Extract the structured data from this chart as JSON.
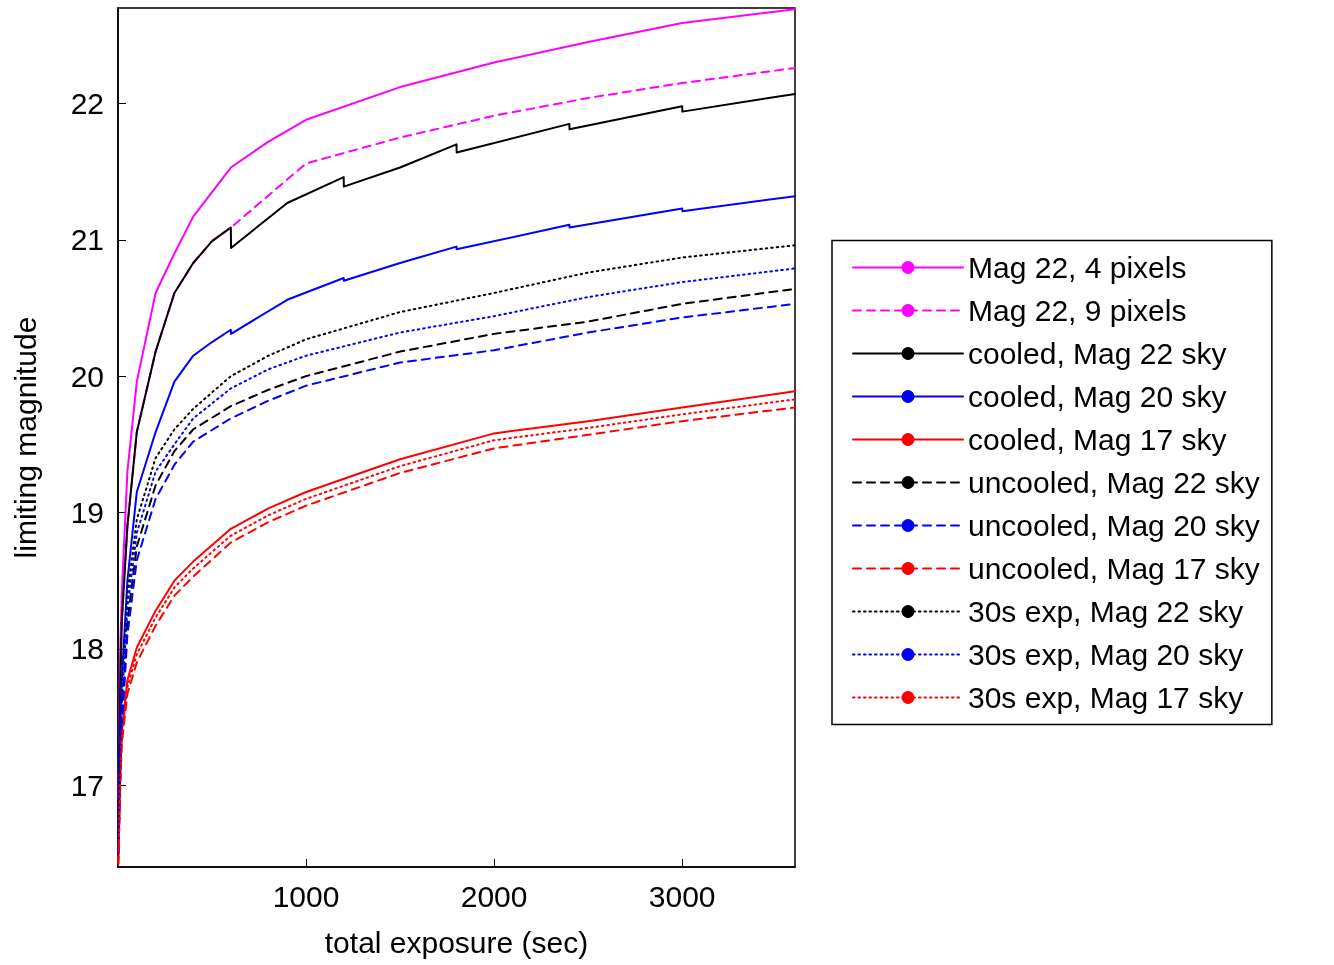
{
  "chart_data": {
    "type": "line",
    "xlabel": "total exposure (sec)",
    "ylabel": "limiting magnitude",
    "xlim": [
      0,
      3600
    ],
    "xticks": [
      1000,
      2000,
      3000
    ],
    "ylim": [
      16.4,
      22.7
    ],
    "yticks": [
      17,
      18,
      19,
      20,
      21,
      22
    ],
    "grid": false,
    "legend": "right",
    "marker": "none",
    "series": [
      {
        "name": "Mag 22, 4 pixels",
        "color": "#ff00ff",
        "line_style": "solid",
        "x": [
          2,
          10,
          20,
          50,
          100,
          200,
          300,
          400,
          600,
          800,
          1000,
          1500,
          2000,
          2500,
          3000,
          3600
        ],
        "values": [
          16.9,
          17.9,
          18.4,
          19.3,
          19.96,
          20.61,
          20.9,
          21.17,
          21.53,
          21.72,
          21.88,
          22.12,
          22.3,
          22.45,
          22.59,
          22.69
        ]
      },
      {
        "name": "Mag 22, 9 pixels",
        "color": "#ff00ff",
        "line_style": "dashed",
        "x": [
          2,
          10,
          20,
          50,
          100,
          200,
          300,
          400,
          500,
          600,
          1000,
          1500,
          2000,
          2500,
          3000,
          3600
        ],
        "values": [
          16.7,
          17.6,
          18.2,
          18.9,
          19.59,
          20.18,
          20.61,
          20.83,
          20.99,
          21.09,
          21.56,
          21.75,
          21.91,
          22.04,
          22.15,
          22.26
        ]
      },
      {
        "name": "cooled, Mag 22 sky",
        "color": "#000000",
        "line_style": "solid",
        "x": [
          2,
          10,
          20,
          50,
          100,
          200,
          300,
          400,
          500,
          600,
          601,
          900,
          1200,
          1201,
          1500,
          1800,
          1801,
          2400,
          2401,
          3000,
          3001,
          3600
        ],
        "values": [
          16.7,
          17.6,
          18.2,
          18.9,
          19.59,
          20.18,
          20.61,
          20.83,
          20.99,
          21.09,
          20.94,
          21.27,
          21.46,
          21.39,
          21.53,
          21.7,
          21.64,
          21.85,
          21.81,
          21.98,
          21.94,
          22.07
        ]
      },
      {
        "name": "cooled, Mag 20 sky",
        "color": "#0000ff",
        "line_style": "solid",
        "x": [
          2,
          10,
          20,
          50,
          100,
          200,
          300,
          400,
          500,
          600,
          601,
          900,
          1200,
          1201,
          1500,
          1800,
          1801,
          2400,
          2401,
          3000,
          3001,
          3600
        ],
        "values": [
          16.6,
          17.3,
          17.77,
          18.5,
          19.15,
          19.59,
          19.96,
          20.15,
          20.25,
          20.34,
          20.31,
          20.56,
          20.72,
          20.7,
          20.83,
          20.95,
          20.93,
          21.11,
          21.09,
          21.23,
          21.21,
          21.32
        ]
      },
      {
        "name": "cooled, Mag 17 sky",
        "color": "#ff0000",
        "line_style": "solid",
        "x": [
          2,
          10,
          20,
          50,
          100,
          200,
          300,
          400,
          600,
          800,
          1000,
          1500,
          2000,
          2500,
          3000,
          3600
        ],
        "values": [
          16.45,
          17.0,
          17.4,
          17.77,
          18.01,
          18.28,
          18.5,
          18.64,
          18.88,
          19.03,
          19.15,
          19.39,
          19.58,
          19.67,
          19.77,
          19.89
        ]
      },
      {
        "name": "uncooled, Mag 22 sky",
        "color": "#000000",
        "line_style": "dashed",
        "x": [
          2,
          10,
          20,
          50,
          100,
          200,
          300,
          400,
          600,
          800,
          1000,
          1500,
          2000,
          2500,
          3000,
          3600
        ],
        "values": [
          16.5,
          17.0,
          17.5,
          18.2,
          18.75,
          19.2,
          19.45,
          19.61,
          19.78,
          19.9,
          20.0,
          20.18,
          20.31,
          20.4,
          20.53,
          20.64
        ]
      },
      {
        "name": "uncooled, Mag 20 sky",
        "color": "#0000ff",
        "line_style": "dashed",
        "x": [
          2,
          10,
          20,
          50,
          100,
          200,
          300,
          400,
          600,
          800,
          1000,
          1500,
          2000,
          2500,
          3000,
          3600
        ],
        "values": [
          16.5,
          16.95,
          17.4,
          18.1,
          18.65,
          19.1,
          19.35,
          19.52,
          19.69,
          19.82,
          19.93,
          20.1,
          20.19,
          20.32,
          20.43,
          20.53
        ]
      },
      {
        "name": "uncooled, Mag 17 sky",
        "color": "#ff0000",
        "line_style": "dashed",
        "x": [
          2,
          10,
          20,
          50,
          100,
          200,
          300,
          400,
          600,
          800,
          1000,
          1500,
          2000,
          2500,
          3000,
          3600
        ],
        "values": [
          16.42,
          16.92,
          17.3,
          17.67,
          17.9,
          18.17,
          18.39,
          18.53,
          18.78,
          18.93,
          19.05,
          19.29,
          19.47,
          19.57,
          19.67,
          19.77
        ]
      },
      {
        "name": "30s exp, Mag 22 sky",
        "color": "#000000",
        "line_style": "dotted",
        "x": [
          2,
          10,
          20,
          50,
          100,
          200,
          300,
          400,
          600,
          800,
          1000,
          1500,
          2000,
          2500,
          3000,
          3600
        ],
        "values": [
          16.6,
          17.2,
          17.7,
          18.4,
          18.95,
          19.4,
          19.61,
          19.76,
          20.0,
          20.15,
          20.27,
          20.47,
          20.61,
          20.76,
          20.87,
          20.96
        ]
      },
      {
        "name": "30s exp, Mag 20 sky",
        "color": "#0000ff",
        "line_style": "dotted",
        "x": [
          2,
          10,
          20,
          50,
          100,
          200,
          300,
          400,
          600,
          800,
          1000,
          1500,
          2000,
          2500,
          3000,
          3600
        ],
        "values": [
          16.6,
          17.1,
          17.6,
          18.3,
          18.85,
          19.3,
          19.5,
          19.69,
          19.91,
          20.05,
          20.15,
          20.32,
          20.44,
          20.58,
          20.69,
          20.79
        ]
      },
      {
        "name": "30s exp, Mag 17 sky",
        "color": "#ff0000",
        "line_style": "dotted",
        "x": [
          2,
          10,
          20,
          50,
          100,
          200,
          300,
          400,
          600,
          800,
          1000,
          1500,
          2000,
          2500,
          3000,
          3600
        ],
        "values": [
          16.43,
          16.96,
          17.35,
          17.72,
          17.96,
          18.23,
          18.45,
          18.59,
          18.83,
          18.98,
          19.1,
          19.34,
          19.53,
          19.62,
          19.72,
          19.83
        ]
      }
    ]
  }
}
